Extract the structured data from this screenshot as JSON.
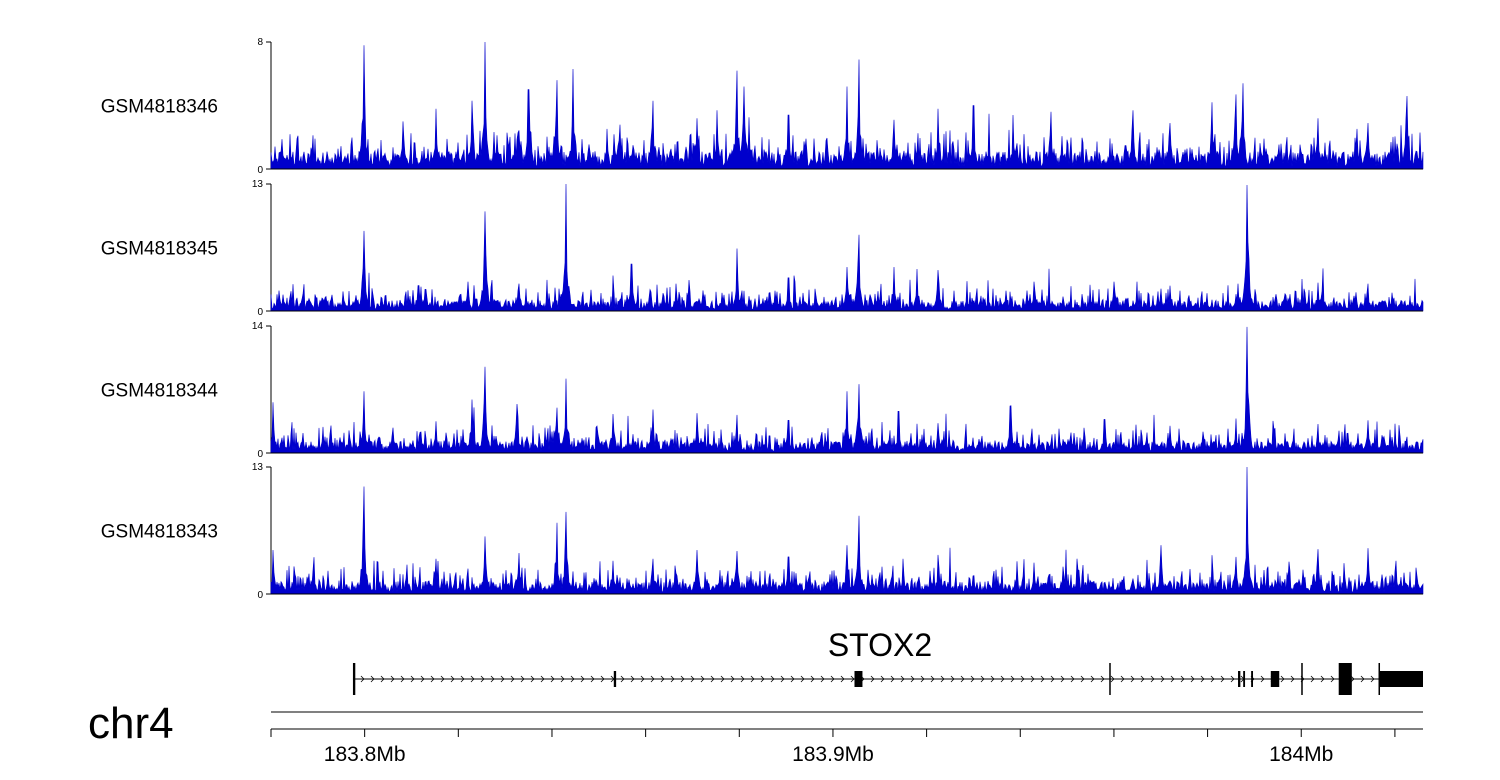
{
  "chart_data": {
    "type": "area",
    "title": "",
    "chromosome": "chr4",
    "xlabel": "",
    "ylabel": "",
    "xlim": [
      183.78,
      184.026
    ],
    "x_unit": "Mb",
    "x_ticks": [
      {
        "value": 183.8,
        "label": "183.8Mb"
      },
      {
        "value": 183.9,
        "label": "183.9Mb"
      },
      {
        "value": 184.0,
        "label": "184Mb"
      }
    ],
    "x_minor_ticks": [
      183.78,
      183.8,
      183.82,
      183.84,
      183.86,
      183.88,
      183.9,
      183.92,
      183.94,
      183.96,
      183.98,
      184.0,
      184.02
    ],
    "bar_color": "#0000cc",
    "series": [
      {
        "name": "GSM4818346",
        "ylim": [
          0,
          8
        ],
        "ymin_label": "0",
        "ymax_label": "8",
        "baseline": 1.1,
        "peaks": [
          {
            "x": 183.7998,
            "y": 7.8
          },
          {
            "x": 183.8082,
            "y": 3.0
          },
          {
            "x": 183.8152,
            "y": 3.8
          },
          {
            "x": 183.823,
            "y": 4.3
          },
          {
            "x": 183.8257,
            "y": 8.0
          },
          {
            "x": 183.835,
            "y": 5.0
          },
          {
            "x": 183.841,
            "y": 5.6
          },
          {
            "x": 183.8445,
            "y": 6.3
          },
          {
            "x": 183.8545,
            "y": 2.8
          },
          {
            "x": 183.8615,
            "y": 4.3
          },
          {
            "x": 183.871,
            "y": 3.2
          },
          {
            "x": 183.8752,
            "y": 3.7
          },
          {
            "x": 183.8795,
            "y": 6.2
          },
          {
            "x": 183.881,
            "y": 5.2
          },
          {
            "x": 183.8905,
            "y": 3.4
          },
          {
            "x": 183.903,
            "y": 5.2
          },
          {
            "x": 183.9055,
            "y": 6.9
          },
          {
            "x": 183.913,
            "y": 3.1
          },
          {
            "x": 183.9225,
            "y": 3.8
          },
          {
            "x": 183.93,
            "y": 4.0
          },
          {
            "x": 183.9385,
            "y": 3.4
          },
          {
            "x": 183.9465,
            "y": 3.6
          },
          {
            "x": 183.964,
            "y": 3.7
          },
          {
            "x": 183.972,
            "y": 2.9
          },
          {
            "x": 183.981,
            "y": 4.2
          },
          {
            "x": 183.986,
            "y": 4.7
          },
          {
            "x": 183.9875,
            "y": 5.4
          },
          {
            "x": 184.0035,
            "y": 3.2
          },
          {
            "x": 184.0142,
            "y": 2.9
          },
          {
            "x": 184.0225,
            "y": 4.6
          }
        ]
      },
      {
        "name": "GSM4818345",
        "ylim": [
          0,
          13
        ],
        "ymin_label": "0",
        "ymax_label": "13",
        "baseline": 1.1,
        "peaks": [
          {
            "x": 183.7998,
            "y": 8.2
          },
          {
            "x": 183.8115,
            "y": 2.6
          },
          {
            "x": 183.822,
            "y": 3.0
          },
          {
            "x": 183.8257,
            "y": 10.2
          },
          {
            "x": 183.833,
            "y": 2.8
          },
          {
            "x": 183.843,
            "y": 13.0
          },
          {
            "x": 183.857,
            "y": 4.8
          },
          {
            "x": 183.8665,
            "y": 2.8
          },
          {
            "x": 183.8795,
            "y": 6.4
          },
          {
            "x": 183.8905,
            "y": 3.4
          },
          {
            "x": 183.903,
            "y": 4.5
          },
          {
            "x": 183.9055,
            "y": 7.8
          },
          {
            "x": 183.913,
            "y": 4.5
          },
          {
            "x": 183.918,
            "y": 4.3
          },
          {
            "x": 183.9225,
            "y": 4.2
          },
          {
            "x": 183.943,
            "y": 3.0
          },
          {
            "x": 183.96,
            "y": 3.0
          },
          {
            "x": 183.972,
            "y": 2.6
          },
          {
            "x": 183.9865,
            "y": 2.8
          },
          {
            "x": 183.9885,
            "y": 12.9
          },
          {
            "x": 184.0035,
            "y": 2.9
          },
          {
            "x": 184.0142,
            "y": 2.8
          }
        ]
      },
      {
        "name": "GSM4818344",
        "ylim": [
          0,
          14
        ],
        "ymin_label": "0",
        "ymax_label": "14",
        "baseline": 1.3,
        "peaks": [
          {
            "x": 183.7805,
            "y": 5.6
          },
          {
            "x": 183.7998,
            "y": 6.8
          },
          {
            "x": 183.806,
            "y": 2.8
          },
          {
            "x": 183.8152,
            "y": 3.5
          },
          {
            "x": 183.823,
            "y": 5.9
          },
          {
            "x": 183.8257,
            "y": 9.5
          },
          {
            "x": 183.8325,
            "y": 5.4
          },
          {
            "x": 183.841,
            "y": 5.0
          },
          {
            "x": 183.843,
            "y": 8.2
          },
          {
            "x": 183.853,
            "y": 4.3
          },
          {
            "x": 183.8615,
            "y": 4.8
          },
          {
            "x": 183.871,
            "y": 4.4
          },
          {
            "x": 183.8795,
            "y": 4.2
          },
          {
            "x": 183.8905,
            "y": 3.6
          },
          {
            "x": 183.903,
            "y": 6.8
          },
          {
            "x": 183.9055,
            "y": 7.6
          },
          {
            "x": 183.914,
            "y": 4.6
          },
          {
            "x": 183.9225,
            "y": 3.3
          },
          {
            "x": 183.938,
            "y": 5.2
          },
          {
            "x": 183.958,
            "y": 3.7
          },
          {
            "x": 183.972,
            "y": 3.0
          },
          {
            "x": 183.986,
            "y": 3.8
          },
          {
            "x": 183.9885,
            "y": 13.9
          },
          {
            "x": 184.0035,
            "y": 3.2
          },
          {
            "x": 184.0142,
            "y": 3.6
          }
        ]
      },
      {
        "name": "GSM4818343",
        "ylim": [
          0,
          13
        ],
        "ymin_label": "0",
        "ymax_label": "13",
        "baseline": 1.3,
        "peaks": [
          {
            "x": 183.7805,
            "y": 4.5
          },
          {
            "x": 183.7998,
            "y": 11.0
          },
          {
            "x": 183.809,
            "y": 3.0
          },
          {
            "x": 183.8152,
            "y": 3.6
          },
          {
            "x": 183.8257,
            "y": 5.9
          },
          {
            "x": 183.833,
            "y": 4.2
          },
          {
            "x": 183.841,
            "y": 7.3
          },
          {
            "x": 183.843,
            "y": 8.4
          },
          {
            "x": 183.853,
            "y": 3.4
          },
          {
            "x": 183.8615,
            "y": 3.6
          },
          {
            "x": 183.871,
            "y": 4.5
          },
          {
            "x": 183.8795,
            "y": 4.4
          },
          {
            "x": 183.8905,
            "y": 3.8
          },
          {
            "x": 183.903,
            "y": 5.0
          },
          {
            "x": 183.9055,
            "y": 8.0
          },
          {
            "x": 183.915,
            "y": 3.6
          },
          {
            "x": 183.9225,
            "y": 4.0
          },
          {
            "x": 183.943,
            "y": 3.2
          },
          {
            "x": 183.97,
            "y": 5.0
          },
          {
            "x": 183.986,
            "y": 3.8
          },
          {
            "x": 183.9885,
            "y": 13.0
          },
          {
            "x": 184.0035,
            "y": 4.6
          },
          {
            "x": 184.0142,
            "y": 4.7
          }
        ]
      }
    ],
    "gene": {
      "name": "STOX2",
      "strand": "+",
      "start": 183.7975,
      "end": 184.026,
      "exons": [
        {
          "start": 183.7975,
          "end": 183.798,
          "height": "full"
        },
        {
          "start": 183.8532,
          "end": 183.8537,
          "height": "half"
        },
        {
          "start": 183.9046,
          "end": 183.9063,
          "height": "half"
        },
        {
          "start": 183.959,
          "end": 183.9592,
          "height": "full"
        },
        {
          "start": 183.9865,
          "end": 183.987,
          "height": "half"
        },
        {
          "start": 183.9876,
          "end": 183.988,
          "height": "half"
        },
        {
          "start": 183.9893,
          "end": 183.9897,
          "height": "half"
        },
        {
          "start": 183.9935,
          "end": 183.9953,
          "height": "half"
        },
        {
          "start": 184.0,
          "end": 184.0003,
          "height": "full"
        },
        {
          "start": 184.008,
          "end": 184.0108,
          "height": "full"
        },
        {
          "start": 184.0165,
          "end": 184.0168,
          "height": "full"
        },
        {
          "start": 184.0168,
          "end": 184.026,
          "height": "half"
        }
      ]
    }
  }
}
